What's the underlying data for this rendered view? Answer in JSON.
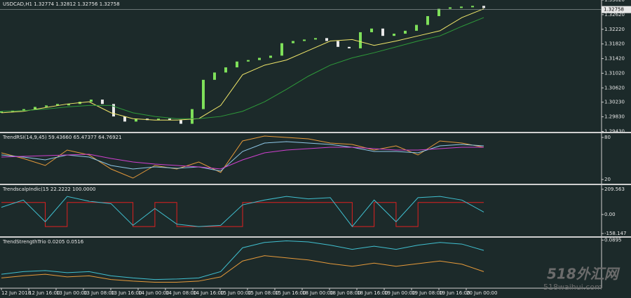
{
  "header": {
    "title": "USDCAD,H1  1.32774 1.32812 1.32756 1.32758"
  },
  "current_price": {
    "value": 1.32758,
    "label": "1.32758"
  },
  "time_labels": [
    "12 Jun 2018",
    "12 Jun 16:00",
    "13 Jun 00:00",
    "13 Jun 08:00",
    "13 Jun 16:00",
    "14 Jun 00:00",
    "14 Jun 08:00",
    "14 Jun 16:00",
    "15 Jun 00:00",
    "15 Jun 08:00",
    "15 Jun 16:00",
    "18 Jun 00:00",
    "18 Jun 08:00",
    "18 Jun 16:00",
    "19 Jun 00:00",
    "19 Jun 08:00",
    "19 Jun 16:00",
    "20 Jun 00:00"
  ],
  "watermark": {
    "title": "518外汇网",
    "url": "518waihui.com"
  },
  "panels": [
    {
      "title": "",
      "ylim": [
        1.2942,
        1.3302
      ],
      "yticks": [
        {
          "value": 1.3302,
          "label": "1.33020"
        },
        {
          "value": 1.3262,
          "label": "1.32620"
        },
        {
          "value": 1.3222,
          "label": "1.32220"
        },
        {
          "value": 1.3182,
          "label": "1.31820"
        },
        {
          "value": 1.3142,
          "label": "1.31420"
        },
        {
          "value": 1.3102,
          "label": "1.31020"
        },
        {
          "value": 1.3062,
          "label": "1.30620"
        },
        {
          "value": 1.3023,
          "label": "1.30230"
        },
        {
          "value": 1.2983,
          "label": "1.29830"
        },
        {
          "value": 1.2943,
          "label": "1.29430"
        }
      ],
      "candles": {
        "color": "#7ee05a",
        "values": [
          1.2998,
          1.3,
          1.3004,
          1.301,
          1.3014,
          1.3018,
          1.3018,
          1.3024,
          1.303,
          1.3018,
          1.2984,
          1.297,
          1.2978,
          1.2974,
          1.2978,
          1.2974,
          1.2964,
          1.3004,
          1.3084,
          1.3104,
          1.3118,
          1.3134,
          1.3138,
          1.3144,
          1.315,
          1.3184,
          1.319,
          1.3194,
          1.3198,
          1.319,
          1.3174,
          1.317,
          1.3214,
          1.3224,
          1.3204,
          1.321,
          1.3218,
          1.3234,
          1.3258,
          1.3278,
          1.3282,
          1.3284,
          1.3286,
          1.328
        ]
      },
      "series": [
        {
          "color": "#f2e86a",
          "values": [
            1.2994,
            1.2998,
            1.3008,
            1.3018,
            1.3024,
            1.2994,
            1.2978,
            1.2974,
            1.2974,
            1.2978,
            1.3014,
            1.3098,
            1.3124,
            1.3138,
            1.3164,
            1.319,
            1.3194,
            1.3178,
            1.319,
            1.3204,
            1.3218,
            1.3254,
            1.3278
          ]
        },
        {
          "color": "#2e9a3a",
          "values": [
            1.2998,
            1.3,
            1.3004,
            1.301,
            1.3014,
            1.3014,
            1.2994,
            1.2984,
            1.2978,
            1.2978,
            1.2984,
            1.2998,
            1.3024,
            1.3058,
            1.3094,
            1.3124,
            1.3144,
            1.3158,
            1.3174,
            1.319,
            1.3204,
            1.323,
            1.3254
          ]
        }
      ]
    },
    {
      "title": "TrendRSI(14,9,45) 59.43660 65.47377 64.76921",
      "ylim": [
        14,
        86
      ],
      "yticks": [
        80,
        20
      ],
      "series": [
        {
          "color": "#e69a3a",
          "values": [
            58,
            50,
            40,
            62,
            55,
            35,
            22,
            40,
            35,
            45,
            30,
            75,
            82,
            80,
            78,
            72,
            70,
            62,
            68,
            55,
            75,
            72,
            66
          ]
        },
        {
          "color": "#8fc8e8",
          "values": [
            55,
            52,
            48,
            55,
            52,
            40,
            35,
            38,
            36,
            38,
            32,
            60,
            72,
            74,
            72,
            70,
            66,
            60,
            60,
            58,
            68,
            70,
            68
          ]
        },
        {
          "color": "#d040d0",
          "values": [
            52,
            53,
            54,
            55,
            56,
            50,
            45,
            42,
            40,
            38,
            35,
            48,
            58,
            62,
            64,
            66,
            66,
            64,
            62,
            62,
            64,
            66,
            66
          ]
        }
      ]
    },
    {
      "title": "TrendscalpIndic(15 22.2222 100.0000",
      "ylim": [
        -181,
        244
      ],
      "yticks": [
        {
          "value": 209.563,
          "label": "209.563"
        },
        {
          "value": 0,
          "label": "0.00"
        },
        {
          "value": -158.147,
          "label": "-158.147"
        }
      ],
      "series": [
        {
          "color": "#e02020",
          "step": true,
          "values": [
            100,
            100,
            -100,
            100,
            100,
            100,
            -100,
            100,
            -100,
            -100,
            -100,
            100,
            100,
            100,
            100,
            100,
            -100,
            100,
            -100,
            100,
            100,
            100,
            100
          ]
        },
        {
          "color": "#40c0d0",
          "values": [
            60,
            120,
            -60,
            150,
            110,
            90,
            -90,
            50,
            -80,
            -100,
            -90,
            80,
            120,
            150,
            130,
            140,
            -100,
            120,
            -60,
            140,
            150,
            120,
            20
          ]
        }
      ]
    },
    {
      "title": "TrendStrengthTrio 0.0205 0.0516",
      "ylim": [
        0,
        0.094
      ],
      "yticks": [
        0.0895
      ],
      "series": [
        {
          "color": "#40c0d0",
          "values": [
            0.025,
            0.03,
            0.032,
            0.028,
            0.03,
            0.022,
            0.018,
            0.015,
            0.016,
            0.018,
            0.03,
            0.075,
            0.085,
            0.088,
            0.086,
            0.08,
            0.072,
            0.078,
            0.072,
            0.08,
            0.085,
            0.082,
            0.07
          ]
        },
        {
          "color": "#e69a3a",
          "values": [
            0.018,
            0.022,
            0.025,
            0.02,
            0.022,
            0.015,
            0.012,
            0.01,
            0.01,
            0.012,
            0.02,
            0.05,
            0.06,
            0.056,
            0.052,
            0.045,
            0.04,
            0.046,
            0.04,
            0.045,
            0.05,
            0.044,
            0.03
          ]
        }
      ]
    }
  ]
}
